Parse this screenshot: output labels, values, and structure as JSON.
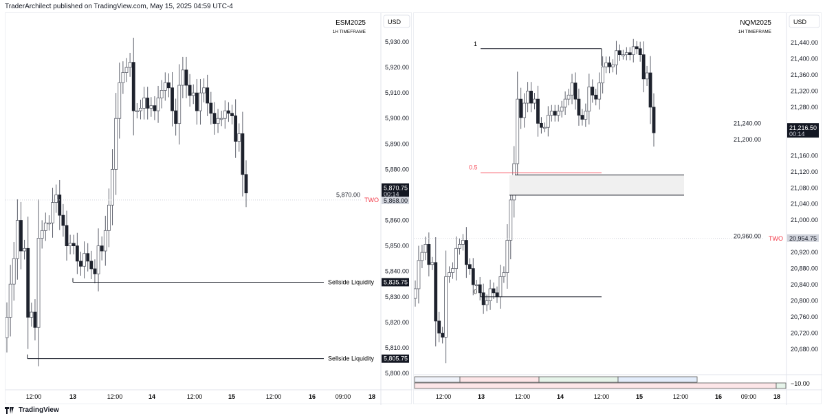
{
  "header": {
    "published": "TraderArchilect published on TradingView.com, May 15, 2025 04:59 UTC-4"
  },
  "footer": {
    "brand": "TradingView",
    "logo": "tradingview-logo"
  },
  "colors": {
    "bull_body": "#ffffff",
    "bear_body": "#1e222d",
    "wick": "#5d606b",
    "two_line": "#f23645",
    "fib_mid": "#f7525f",
    "fvg_fill": "#f0f0f0"
  },
  "chart_data": [
    {
      "type": "candlestick",
      "symbol": "ESM2025",
      "timeframe": "1H TIMEFRAME",
      "currency": "USD",
      "ylim": [
        5795,
        5935
      ],
      "yticks": [
        5930,
        5920,
        5910,
        5900,
        5890,
        5880,
        5870,
        5860,
        5850,
        5840,
        5830,
        5820,
        5810,
        5800
      ],
      "ytick_labels": [
        "5,930.00",
        "5,920.00",
        "5,910.00",
        "5,900.00",
        "5,890.00",
        "5,880.00",
        "5,870.00",
        "5,860.00",
        "5,850.00",
        "5,840.00",
        "5,830.00",
        "5,820.00",
        "5,810.00",
        "5,800.00"
      ],
      "xticks": [
        "12:00",
        "13",
        "12:00",
        "14",
        "12:00",
        "15",
        "12:00",
        "16",
        "09:00",
        "18"
      ],
      "close": [
        5822,
        5835,
        5845,
        5860,
        5848,
        5849,
        5822,
        5824,
        5818,
        5853,
        5856,
        5859,
        5859,
        5867,
        5870,
        5862,
        5858,
        5850,
        5851,
        5850,
        5844,
        5842,
        5847,
        5844,
        5841,
        5839,
        5850,
        5848,
        5856,
        5866,
        5880,
        5900,
        5914,
        5918,
        5920,
        5922,
        5903,
        5903,
        5904,
        5908,
        5904,
        5905,
        5903,
        5908,
        5911,
        5914,
        5912,
        5903,
        5898,
        5913,
        5919,
        5913,
        5909,
        5910,
        5903,
        5910,
        5912,
        5906,
        5902,
        5898,
        5900,
        5900,
        5903,
        5902,
        5901,
        5891,
        5894,
        5878,
        5870.75
      ],
      "last_price": "5,870.75",
      "countdown": "00:14",
      "levels": [
        {
          "label": "Sellside Liquidity",
          "value": 5835.75,
          "badge": "5,835.75"
        },
        {
          "label": "Sellside Liquidity",
          "value": 5805.75,
          "badge": "5,805.75"
        },
        {
          "label": "TWO",
          "value": 5868,
          "badge": "5,868.00"
        }
      ]
    },
    {
      "type": "candlestick",
      "symbol": "NQM2025",
      "timeframe": "1H TIMEFRAME",
      "currency": "USD",
      "ylim": [
        20620,
        21480
      ],
      "yticks": [
        21440,
        21400,
        21360,
        21320,
        21280,
        21240,
        21200,
        21160,
        21120,
        21080,
        21040,
        21000,
        20960,
        20920,
        20880,
        20840,
        20800,
        20760,
        20720,
        20680
      ],
      "ytick_labels": [
        "21,440.00",
        "21,400.00",
        "21,360.00",
        "21,320.00",
        "21,280.00",
        "21,240.00",
        "21,200.00",
        "21,160.00",
        "21,120.00",
        "21,080.00",
        "21,040.00",
        "21,000.00",
        "20,960.00",
        "20,920.00",
        "20,880.00",
        "20,840.00",
        "20,800.00",
        "20,760.00",
        "20,720.00",
        "20,680.00"
      ],
      "xticks": [
        "12:00",
        "13",
        "12:00",
        "14",
        "12:00",
        "15",
        "12:00",
        "16",
        "09:00",
        "18"
      ],
      "close": [
        20830,
        20900,
        20920,
        20940,
        20890,
        20895,
        20750,
        20720,
        20710,
        20860,
        20870,
        20880,
        20930,
        20940,
        20950,
        20890,
        20880,
        20840,
        20840,
        20820,
        20790,
        20800,
        20830,
        20820,
        20810,
        20860,
        20870,
        20950,
        21050,
        21140,
        21300,
        21254,
        21290,
        21320,
        21290,
        21300,
        21240,
        21230,
        21230,
        21260,
        21270,
        21260,
        21270,
        21280,
        21300,
        21310,
        21340,
        21300,
        21260,
        21250,
        21270,
        21330,
        21310,
        21300,
        21340,
        21380,
        21390,
        21380,
        21385,
        21420,
        21410,
        21410,
        21415,
        21410,
        21430,
        21425,
        21410,
        21350,
        21365,
        21280,
        21216.5
      ],
      "last_price": "21,216.50",
      "countdown": "00:14",
      "fib": [
        {
          "label": "1",
          "value": 21425
        },
        {
          "label": "0.5",
          "value": 21117
        },
        {
          "label": "0",
          "value": 20810
        }
      ],
      "fvg": [
        21112,
        21062
      ],
      "two": {
        "label": "TWO",
        "value": 20954.75,
        "badge": "20,954.75"
      },
      "indicator_label": "−10.00"
    }
  ]
}
